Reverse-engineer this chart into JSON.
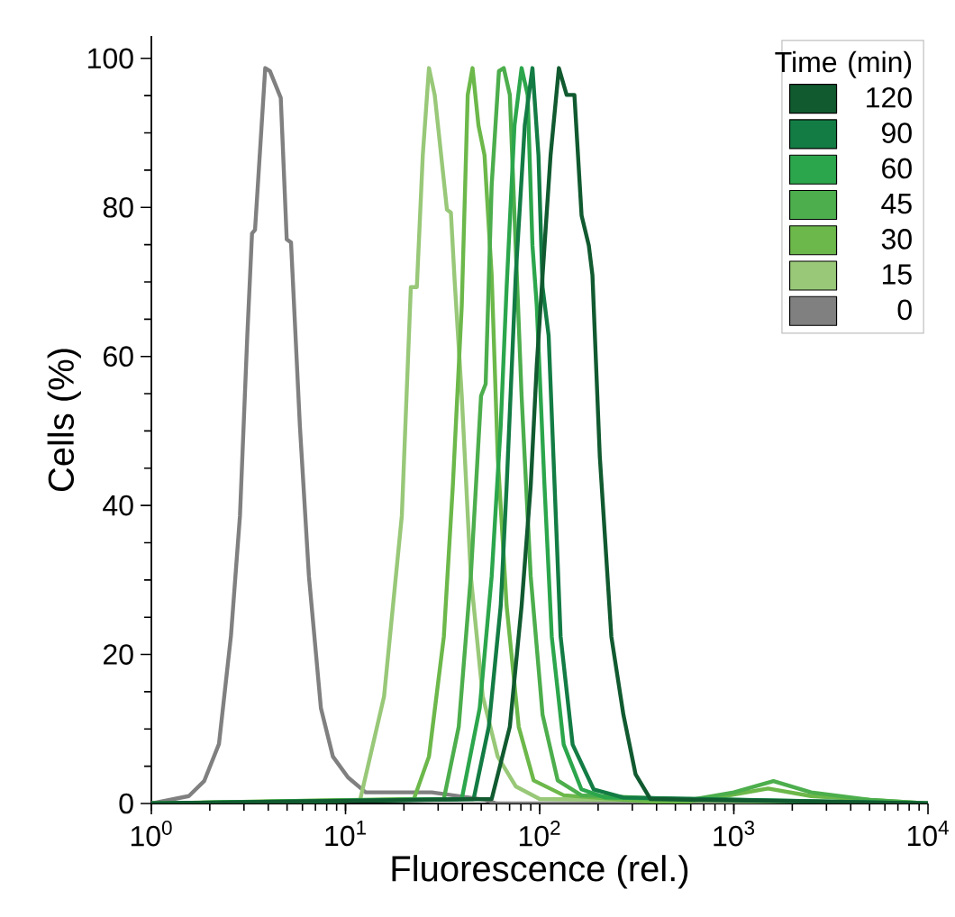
{
  "chart_data": {
    "type": "line",
    "xlabel": "Fluorescence (rel.)",
    "ylabel": "Cells (%)",
    "legend_title": "Time (min)",
    "log": "x",
    "legend": "top right",
    "xlim": [
      1,
      10000
    ],
    "ylim": [
      0,
      103
    ],
    "xticks": [
      {
        "value": 1,
        "label": "10$^{0}$"
      },
      {
        "value": 10,
        "label": "10$^{1}$"
      },
      {
        "value": 100,
        "label": "10$^{2}$"
      },
      {
        "value": 1000,
        "label": "10$^{3}$"
      },
      {
        "value": 10000,
        "label": "10$^{4}$"
      }
    ],
    "yticks": [
      0,
      20,
      40,
      60,
      80,
      100
    ],
    "series": [
      {
        "name": "0",
        "color": "#808080",
        "x": [
          1,
          1.56,
          1.87,
          2.23,
          2.57,
          2.86,
          3.12,
          3.3,
          3.42,
          3.86,
          4.08,
          4.64,
          4.98,
          5.24,
          5.82,
          6.48,
          7.47,
          8.61,
          10.3,
          12.7,
          27.8,
          52.5,
          60,
          10000
        ],
        "values": [
          0,
          1,
          3,
          8,
          22.5,
          38.6,
          62.8,
          76.5,
          77,
          98.7,
          98.3,
          94.7,
          75.7,
          75.3,
          50.7,
          30.5,
          12.8,
          6.3,
          3.5,
          1.5,
          1.5,
          0.5,
          0,
          0
        ]
      },
      {
        "name": "15",
        "color": "#98c878",
        "x": [
          1,
          11.9,
          15.8,
          19.5,
          21.7,
          23.3,
          25.0,
          26.9,
          28.8,
          33.3,
          34.9,
          36.5,
          39.7,
          44.2,
          50.9,
          60.8,
          75.3,
          100,
          10000
        ],
        "values": [
          0,
          0.5,
          14.4,
          38.6,
          69.3,
          69.3,
          87.0,
          98.7,
          95.1,
          79.7,
          79.3,
          70.1,
          54.7,
          30.5,
          14.4,
          6.3,
          2.3,
          0.6,
          0
        ]
      },
      {
        "name": "30",
        "color": "#6cb84a",
        "x": [
          1,
          22.5,
          26.9,
          32.1,
          35.7,
          39.7,
          42.6,
          45.1,
          48.4,
          52.0,
          56.6,
          60.8,
          67.6,
          78.0,
          93.1,
          133,
          500,
          900,
          1500,
          2500,
          5000,
          10000
        ],
        "values": [
          0,
          0.6,
          6.3,
          22.4,
          42.6,
          66.8,
          95.1,
          98.7,
          91.0,
          87.0,
          70.9,
          46.6,
          26.5,
          10.3,
          3.1,
          1.1,
          0,
          1,
          2,
          1,
          0.5,
          0
        ]
      },
      {
        "name": "45",
        "color": "#4cae4c",
        "x": [
          1,
          32.1,
          38.3,
          44.2,
          49.9,
          52.7,
          56.6,
          61.7,
          65.3,
          70.2,
          74.2,
          80.7,
          89.9,
          103.5,
          123.8,
          164,
          600,
          1000,
          1600,
          2500,
          5000,
          10000
        ],
        "values": [
          0,
          0.6,
          10.3,
          30.5,
          54.7,
          56.3,
          83.0,
          98.3,
          98.7,
          95.1,
          78.9,
          54.7,
          30.5,
          11.9,
          3.1,
          1.1,
          0.5,
          1.5,
          3,
          1.5,
          0.5,
          0
        ]
      },
      {
        "name": "60",
        "color": "#2ca64c",
        "x": [
          1,
          39.7,
          49.1,
          56.6,
          63.0,
          67.6,
          74.2,
          80.7,
          86.7,
          91.8,
          96.6,
          105.9,
          115.4,
          133,
          164,
          218,
          10000
        ],
        "values": [
          0,
          0.6,
          12.8,
          30.5,
          50.7,
          69.3,
          91.0,
          98.7,
          95.1,
          74.9,
          66.8,
          42.6,
          22.4,
          7.9,
          1.9,
          0.8,
          0
        ]
      },
      {
        "name": "90",
        "color": "#137c44",
        "x": [
          1,
          45.7,
          54.7,
          63.0,
          67.6,
          75.3,
          83.8,
          91.8,
          98.6,
          103.5,
          111.2,
          119.4,
          128.2,
          147.9,
          189.7,
          270,
          10000
        ],
        "values": [
          0,
          0.6,
          10.3,
          26.5,
          42.6,
          70.9,
          91.0,
          98.7,
          87.0,
          69.3,
          62.8,
          42.6,
          22.4,
          7.9,
          1.9,
          0.8,
          0
        ]
      },
      {
        "name": "120",
        "color": "#115a30",
        "x": [
          1,
          56.6,
          70.2,
          80.7,
          89.9,
          96.6,
          103.5,
          113.8,
          125.6,
          137.7,
          151.0,
          164.4,
          179.1,
          187,
          204,
          234,
          270,
          312,
          372,
          10000
        ],
        "values": [
          0,
          0.6,
          10.3,
          26.5,
          42.6,
          58.8,
          70.9,
          87.0,
          98.7,
          95.1,
          95.1,
          78.9,
          74.9,
          70.9,
          46.6,
          22.4,
          11.9,
          3.9,
          0.6,
          0
        ]
      }
    ]
  }
}
